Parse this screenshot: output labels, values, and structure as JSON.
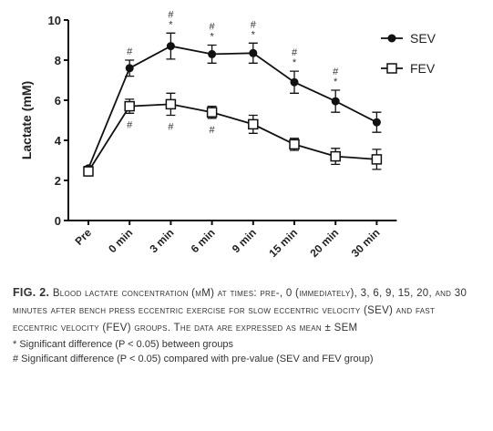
{
  "chart_data": {
    "type": "line",
    "y_label": "Lactate (mM)",
    "categories": [
      "Pre",
      "0 min",
      "3 min",
      "6 min",
      "9 min",
      "15 min",
      "20 min",
      "30 min"
    ],
    "series": [
      {
        "name": "SEV",
        "color": "#111111",
        "marker": "filled-circle",
        "values": [
          2.6,
          7.6,
          8.7,
          8.3,
          8.35,
          6.9,
          5.95,
          4.9
        ],
        "errors": [
          0.1,
          0.4,
          0.65,
          0.45,
          0.5,
          0.55,
          0.55,
          0.5
        ]
      },
      {
        "name": "FEV",
        "color": "#111111",
        "marker": "open-square",
        "values": [
          2.45,
          5.7,
          5.8,
          5.4,
          4.8,
          3.8,
          3.2,
          3.05
        ],
        "errors": [
          0.1,
          0.35,
          0.55,
          0.3,
          0.45,
          0.3,
          0.4,
          0.5
        ]
      }
    ],
    "ylim": [
      0,
      10
    ],
    "yticks": [
      0,
      2,
      4,
      6,
      8,
      10
    ],
    "legend": "upper right",
    "annotations": [
      {
        "x": "0 min",
        "series": "SEV",
        "lines": [
          "#"
        ]
      },
      {
        "x": "3 min",
        "series": "SEV",
        "lines": [
          "#",
          "*"
        ]
      },
      {
        "x": "6 min",
        "series": "SEV",
        "lines": [
          "#",
          "*"
        ]
      },
      {
        "x": "9 min",
        "series": "SEV",
        "lines": [
          "#",
          "*"
        ]
      },
      {
        "x": "15 min",
        "series": "SEV",
        "lines": [
          "#",
          "*"
        ]
      },
      {
        "x": "20 min",
        "series": "SEV",
        "lines": [
          "#",
          "*"
        ]
      },
      {
        "x": "0 min",
        "series": "FEV",
        "lines": [
          "#"
        ]
      },
      {
        "x": "3 min",
        "series": "FEV",
        "lines": [
          "#"
        ]
      },
      {
        "x": "6 min",
        "series": "FEV",
        "lines": [
          "#"
        ]
      }
    ]
  },
  "caption": {
    "label": "FIG. 2.",
    "text": "Blood lactate concentration (mM) at times: pre-, 0 (immediately), 3, 6, 9, 15, 20, and 30 minutes after bench press eccentric exercise for slow eccentric velocity (SEV) and fast eccentric velocity (FEV) groups. The data are expressed as mean ± SEM",
    "notes": [
      "* Significant difference (P < 0.05) between groups",
      "# Significant difference (P < 0.05) compared with pre-value (SEV and FEV group)"
    ]
  }
}
